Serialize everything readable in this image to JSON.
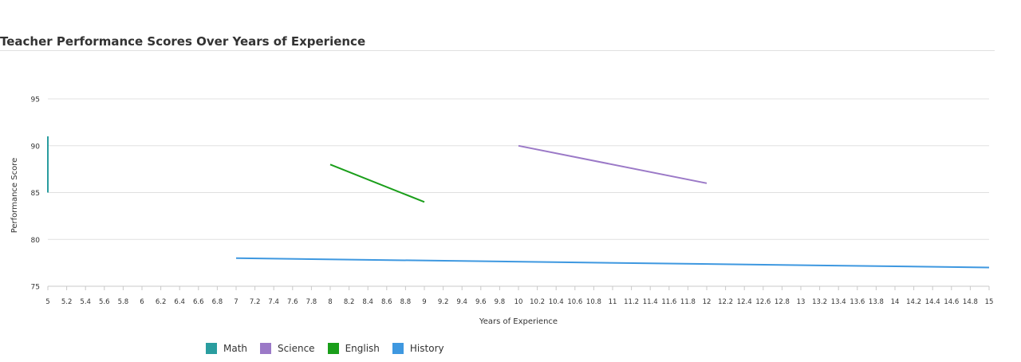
{
  "chart_data": {
    "type": "line",
    "title": "Teacher Performance Scores Over Years of Experience",
    "xlabel": "Years of Experience",
    "ylabel": "Performance Score",
    "xlim": [
      5,
      15
    ],
    "ylim": [
      75,
      95
    ],
    "x_tick_step": 0.2,
    "y_ticks": [
      75,
      80,
      85,
      90,
      95
    ],
    "grid": true,
    "legend_position": "bottom",
    "series": [
      {
        "name": "Math",
        "color": "#2a9d9f",
        "points": [
          [
            5,
            85
          ],
          [
            5,
            91
          ]
        ]
      },
      {
        "name": "Science",
        "color": "#9b79c7",
        "points": [
          [
            10,
            90
          ],
          [
            12,
            86
          ]
        ]
      },
      {
        "name": "English",
        "color": "#1a9e1a",
        "points": [
          [
            8,
            88
          ],
          [
            9,
            84
          ]
        ]
      },
      {
        "name": "History",
        "color": "#3e98e0",
        "points": [
          [
            7,
            78
          ],
          [
            15,
            77
          ]
        ]
      }
    ]
  }
}
